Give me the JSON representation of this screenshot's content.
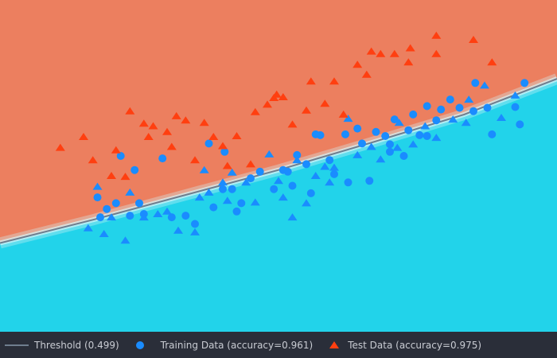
{
  "colors": {
    "class_a_region": "#ec7f5f",
    "class_b_region": "#22d3ea",
    "band_light": "#d5f3f7",
    "boundary": "#6f7d8e",
    "training_marker": "#1a8cff",
    "test_marker": "#ff3f10",
    "legend_bg": "#2a2e39",
    "legend_text": "#c9ccd3"
  },
  "chart_data": {
    "type": "scatter",
    "xlim": [
      -3,
      3
    ],
    "ylim": [
      -2,
      2
    ],
    "grid": false,
    "legend_position": "bottom",
    "boundary": {
      "label": "Threshold (0.499)",
      "points": [
        [
          -3,
          -0.93
        ],
        [
          -2,
          -0.65
        ],
        [
          -1,
          -0.35
        ],
        [
          0,
          -0.05
        ],
        [
          1,
          0.28
        ],
        [
          2,
          0.62
        ],
        [
          3,
          1.05
        ]
      ]
    },
    "series": [
      {
        "name": "Training Data (accuracy=0.961)",
        "marker": "circle",
        "points": [
          [
            -1.92,
            -0.62
          ],
          [
            -1.55,
            -0.05
          ],
          [
            -1.25,
            0.09
          ],
          [
            -1.5,
            -0.45
          ],
          [
            -1.7,
            0.12
          ],
          [
            -1.15,
            -0.62
          ],
          [
            -0.58,
            0.17
          ],
          [
            -0.75,
            0.27
          ],
          [
            -1.75,
            -0.45
          ],
          [
            -1.45,
            -0.58
          ],
          [
            -1.95,
            -0.38
          ],
          [
            -1.85,
            -0.52
          ],
          [
            -1.0,
            -0.6
          ],
          [
            -0.9,
            -0.7
          ],
          [
            -1.6,
            -0.6
          ],
          [
            -0.5,
            -0.28
          ],
          [
            -0.3,
            -0.15
          ],
          [
            0.1,
            -0.07
          ],
          [
            0.3,
            0.02
          ],
          [
            0.55,
            0.07
          ],
          [
            -0.05,
            -0.28
          ],
          [
            0.35,
            -0.33
          ],
          [
            0.9,
            0.27
          ],
          [
            1.15,
            0.36
          ],
          [
            1.25,
            0.56
          ],
          [
            1.45,
            0.62
          ],
          [
            1.4,
            0.43
          ],
          [
            1.52,
            0.37
          ],
          [
            1.6,
            0.36
          ],
          [
            1.75,
            0.68
          ],
          [
            1.95,
            0.7
          ],
          [
            2.1,
            0.66
          ],
          [
            2.25,
            0.7
          ],
          [
            1.7,
            0.55
          ],
          [
            0.85,
            0.45
          ],
          [
            1.05,
            0.41
          ],
          [
            1.2,
            0.26
          ],
          [
            1.35,
            0.12
          ],
          [
            0.72,
            0.38
          ],
          [
            0.45,
            0.37
          ],
          [
            -0.6,
            -0.28
          ],
          [
            -0.4,
            -0.45
          ],
          [
            -0.2,
            -0.07
          ],
          [
            0.15,
            -0.24
          ],
          [
            0.6,
            -0.1
          ],
          [
            0.75,
            -0.2
          ],
          [
            0.98,
            -0.18
          ],
          [
            -0.45,
            -0.55
          ],
          [
            0.2,
            0.13
          ],
          [
            -0.7,
            -0.5
          ],
          [
            1.6,
            0.72
          ],
          [
            1.85,
            0.8
          ],
          [
            2.3,
            0.38
          ],
          [
            2.12,
            1.0
          ],
          [
            2.6,
            0.5
          ],
          [
            2.65,
            1.0
          ],
          [
            2.55,
            0.71
          ],
          [
            1.2,
            0.17
          ],
          [
            0.05,
            -0.05
          ],
          [
            0.4,
            0.38
          ]
        ]
      },
      {
        "name": "Test Data (accuracy=0.975)",
        "marker": "triangle",
        "points": [
          [
            -1.6,
            -0.32
          ],
          [
            -1.45,
            -0.62
          ],
          [
            -1.8,
            -0.62
          ],
          [
            -1.3,
            -0.58
          ],
          [
            -1.2,
            -0.55
          ],
          [
            -1.95,
            -0.25
          ],
          [
            -1.88,
            -0.82
          ],
          [
            -1.08,
            -0.78
          ],
          [
            -0.9,
            -0.8
          ],
          [
            -0.6,
            -0.2
          ],
          [
            -0.8,
            -0.05
          ],
          [
            -0.35,
            -0.2
          ],
          [
            -0.5,
            -0.08
          ],
          [
            0.0,
            -0.18
          ],
          [
            0.2,
            0.07
          ],
          [
            0.4,
            -0.12
          ],
          [
            0.6,
            -0.02
          ],
          [
            0.85,
            0.13
          ],
          [
            1.1,
            0.08
          ],
          [
            1.28,
            0.22
          ],
          [
            1.45,
            0.26
          ],
          [
            1.58,
            0.48
          ],
          [
            1.88,
            0.56
          ],
          [
            2.02,
            0.52
          ],
          [
            2.05,
            0.8
          ],
          [
            2.22,
            0.97
          ],
          [
            2.4,
            0.58
          ],
          [
            2.55,
            0.85
          ],
          [
            0.75,
            0.57
          ],
          [
            1.3,
            0.52
          ],
          [
            -0.55,
            -0.42
          ],
          [
            -0.85,
            -0.38
          ],
          [
            0.05,
            -0.38
          ],
          [
            0.15,
            -0.62
          ],
          [
            0.55,
            -0.2
          ],
          [
            -0.1,
            0.14
          ],
          [
            0.5,
            -0.01
          ],
          [
            -0.25,
            -0.44
          ],
          [
            0.3,
            -0.45
          ],
          [
            -0.75,
            -0.32
          ],
          [
            -2.05,
            -0.75
          ],
          [
            -1.65,
            -0.9
          ],
          [
            1.0,
            0.23
          ],
          [
            1.7,
            0.34
          ],
          [
            -1.8,
            -0.12
          ],
          [
            -1.65,
            -0.13
          ],
          [
            -1.75,
            0.19
          ],
          [
            -0.02,
            0.86
          ],
          [
            -0.12,
            0.74
          ],
          [
            -0.6,
            0.24
          ],
          [
            -0.9,
            0.07
          ],
          [
            -1.15,
            0.23
          ],
          [
            -1.45,
            0.51
          ],
          [
            -1.6,
            0.66
          ],
          [
            -1.35,
            0.48
          ],
          [
            -1.2,
            0.41
          ],
          [
            -1.4,
            0.35
          ],
          [
            -1.1,
            0.6
          ],
          [
            -0.8,
            0.52
          ],
          [
            -0.05,
            0.82
          ],
          [
            0.05,
            0.83
          ],
          [
            0.35,
            1.02
          ],
          [
            0.6,
            1.02
          ],
          [
            1.0,
            1.38
          ],
          [
            1.1,
            1.35
          ],
          [
            1.4,
            1.25
          ],
          [
            1.7,
            1.35
          ],
          [
            2.3,
            1.25
          ],
          [
            2.1,
            1.52
          ],
          [
            1.7,
            1.57
          ],
          [
            1.42,
            1.42
          ],
          [
            1.25,
            1.35
          ],
          [
            0.85,
            1.22
          ],
          [
            0.95,
            1.1
          ],
          [
            0.7,
            0.62
          ],
          [
            0.5,
            0.75
          ],
          [
            -0.55,
            0.0
          ],
          [
            -0.3,
            0.02
          ],
          [
            -0.45,
            0.36
          ],
          [
            -0.25,
            0.65
          ],
          [
            0.15,
            0.5
          ],
          [
            -0.7,
            0.35
          ],
          [
            -2.35,
            0.22
          ],
          [
            -2.0,
            0.07
          ],
          [
            -2.1,
            0.35
          ],
          [
            -1.0,
            0.55
          ],
          [
            0.3,
            0.67
          ]
        ]
      }
    ]
  },
  "legend": {
    "threshold_label": "Threshold (0.499)",
    "training_label": "Training Data (accuracy=0.961)",
    "test_label": "Test Data (accuracy=0.975)"
  }
}
